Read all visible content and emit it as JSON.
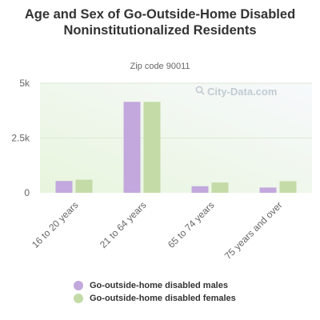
{
  "header": {
    "title": "Age and Sex of Go-Outside-Home Disabled Noninstitutionalized Residents",
    "subtitle": "Zip code 90011"
  },
  "watermark": "City-Data.com",
  "colors": {
    "males": "#c2a8dd",
    "females": "#c4dba8",
    "plot_bg_start": "#e8f5dd",
    "plot_bg_end": "#f7f9fc"
  },
  "chart_data": {
    "type": "bar",
    "title": "Age and Sex of Go-Outside-Home Disabled Noninstitutionalized Residents",
    "subtitle": "Zip code 90011",
    "categories": [
      "16 to 20 years",
      "21 to 64 years",
      "65 to 74 years",
      "75 years and over"
    ],
    "series": [
      {
        "name": "Go-outside-home disabled males",
        "values": [
          540,
          4150,
          300,
          240
        ]
      },
      {
        "name": "Go-outside-home disabled females",
        "values": [
          600,
          4150,
          470,
          530
        ]
      }
    ],
    "ylim": [
      0,
      5000
    ],
    "yticks": [
      0,
      2500,
      5000
    ],
    "ytick_labels": [
      "0",
      "2.5k",
      "5k"
    ],
    "grid": true,
    "legend": "bottom"
  }
}
